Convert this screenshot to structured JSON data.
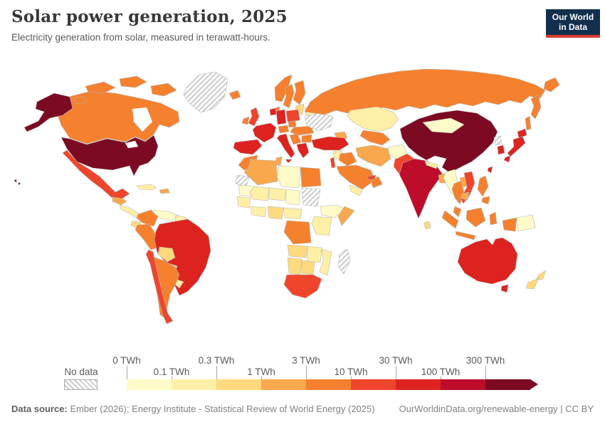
{
  "header": {
    "title": "Solar power generation, 2025",
    "subtitle": "Electricity generation from solar, measured in terawatt-hours.",
    "logo": {
      "line1": "Our World",
      "line2": "in Data",
      "bg_color": "#12304e",
      "accent_color": "#d93a30"
    }
  },
  "legend": {
    "no_data_label": "No data",
    "thresholds": [
      "0 TWh",
      "0.1 TWh",
      "0.3 TWh",
      "1 TWh",
      "3 TWh",
      "10 TWh",
      "30 TWh",
      "100 TWh",
      "300 TWh"
    ]
  },
  "footer": {
    "source_label": "Data source:",
    "source_text": " Ember (2026); Energy Institute - Statistical Review of World Energy (2025)",
    "right_text": "OurWorldinData.org/renewable-energy | CC BY"
  },
  "chart_data": {
    "type": "choropleth-map",
    "title": "Solar power generation, 2025",
    "unit": "TWh",
    "projection": "world map, equirectangular-style",
    "no_data": {
      "label": "No data",
      "pattern": "diagonal-hatch"
    },
    "bins": [
      {
        "range": "0-0.1 TWh",
        "color": "#fefbc9"
      },
      {
        "range": "0.1-0.3 TWh",
        "color": "#feefa6"
      },
      {
        "range": "0.3-1 TWh",
        "color": "#fed97d"
      },
      {
        "range": "1-3 TWh",
        "color": "#f9a84d"
      },
      {
        "range": "3-10 TWh",
        "color": "#f5812f"
      },
      {
        "range": "10-30 TWh",
        "color": "#ef452c"
      },
      {
        "range": "30-100 TWh",
        "color": "#dd231f"
      },
      {
        "range": "100-300 TWh",
        "color": "#bd0d2a"
      },
      {
        "range": "300+ TWh",
        "color": "#7c0a22"
      }
    ],
    "countries": {
      "united-states": 8,
      "alaska": 8,
      "hawaii": 8,
      "canada": 4,
      "canada-islands-a": 4,
      "canada-islands-b": 4,
      "canada-islands-c": 4,
      "canada-islands-d": 4,
      "greenland": "nd",
      "mexico": 5,
      "central-america-north": 3,
      "central-america-south": 1,
      "cuba": 1,
      "hispaniola": 3,
      "colombia": 4,
      "venezuela": 0,
      "guyanas": 1,
      "ecuador": 2,
      "peru": 4,
      "brazil": 6,
      "bolivia": 2,
      "paraguay": 0,
      "uruguay": 1,
      "argentina": 4,
      "chile": 5,
      "iceland": 4,
      "uk": 5,
      "ireland": 4,
      "norway": 4,
      "sweden": 4,
      "finland": 4,
      "denmark": 4,
      "baltics": 2,
      "belarus": 1,
      "poland": 5,
      "germany": 6,
      "benelux": 6,
      "france": 6,
      "spain": 6,
      "italy": 6,
      "sicily": 6,
      "alpine": 4,
      "czechia": 4,
      "hungary-romania": 4,
      "west-balkans": 4,
      "bulgaria": 4,
      "greece": 6,
      "ukraine": "nd",
      "russia": 4,
      "russia-far-east": 4,
      "kamchatka": 4,
      "sakhalin": 4,
      "kazakhstan": 1,
      "central-asia": 4,
      "caucasus": 3,
      "turkey": 6,
      "syria": 1,
      "israel": 5,
      "iraq": 4,
      "iran": 3,
      "afghanistan": 0,
      "pakistan": 5,
      "saudi-arabia": 4,
      "yemen": 1,
      "oman": 4,
      "uae": 5,
      "morocco": 4,
      "algeria": 3,
      "tunisia": 3,
      "libya": 0,
      "egypt": 4,
      "western-sahara": "nd",
      "mauritania": 0,
      "mali": 1,
      "niger": 1,
      "chad": 0,
      "sudan": "nd",
      "senegal-guinea": 1,
      "ghana-ivory": 1,
      "nigeria": 2,
      "cameroon-car": 1,
      "ethiopia": 0,
      "somalia": 3,
      "east-africa": 1,
      "drc": 4,
      "angola": 2,
      "zambia-zimbabwe": 1,
      "mozambique": 1,
      "namibia": 2,
      "botswana": 2,
      "south-africa": 5,
      "madagascar": "nd",
      "china": 8,
      "mongolia": 0,
      "north-korea": "nd",
      "south-korea": 6,
      "japan-hokkaido": 6,
      "japan-honshu": 6,
      "japan-kyushu": 6,
      "taiwan": 6,
      "india": 7,
      "sri-lanka": 2,
      "nepal": 1,
      "bangladesh": 3,
      "myanmar": 0,
      "thailand": 4,
      "laos": 3,
      "vietnam": 5,
      "cambodia": 3,
      "malaysia": 4,
      "sumatra": 4,
      "java": 4,
      "borneo": 4,
      "sulawesi": 4,
      "philippines": 4,
      "mindanao": 4,
      "west-papua": 4,
      "papua-new-guinea": 0,
      "australia": 6,
      "tasmania": 6,
      "nz-north": 2,
      "nz-south": 2
    }
  }
}
